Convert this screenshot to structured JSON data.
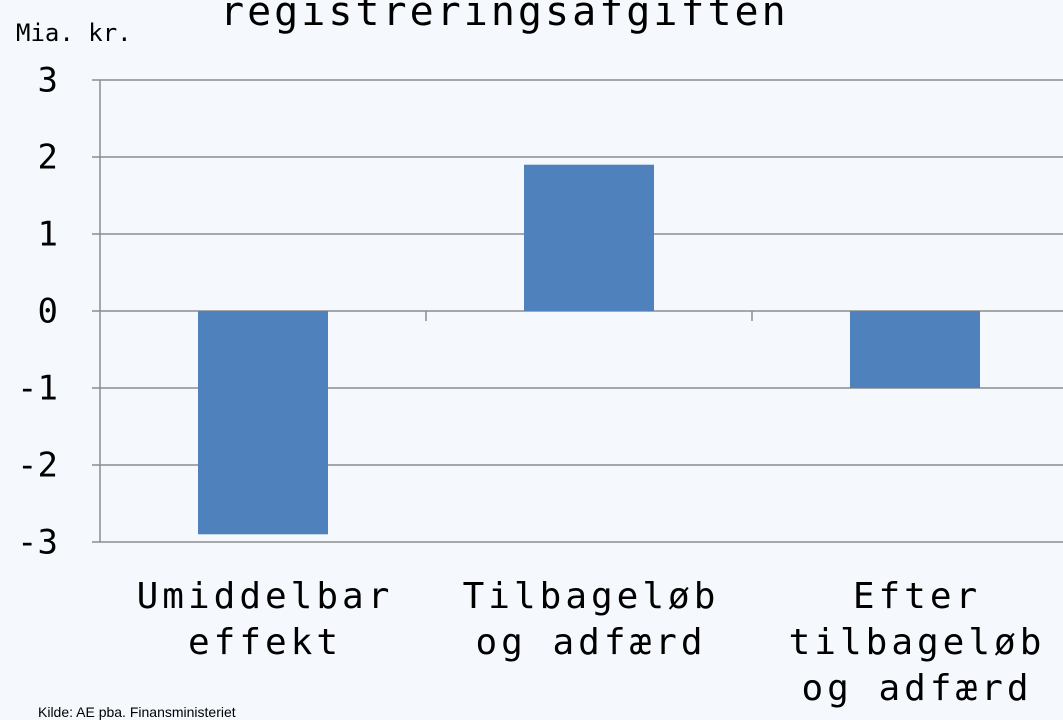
{
  "chart_data": {
    "type": "bar",
    "title": "registreringsafgiften",
    "ylabel": "Mia. kr.",
    "categories": [
      "Umiddelbar\neffekt",
      "Tilbageløb\nog adfærd",
      "Efter\ntilbageløb\nog adfærd"
    ],
    "values": [
      -2.9,
      1.9,
      -1.0
    ],
    "color": "#4f81bd",
    "ylim": [
      -3,
      3
    ],
    "yticks": [
      -3,
      -2,
      -1,
      0,
      1,
      2,
      3
    ],
    "grid": true,
    "source": "Kilde: AE pba. Finansministeriet"
  }
}
